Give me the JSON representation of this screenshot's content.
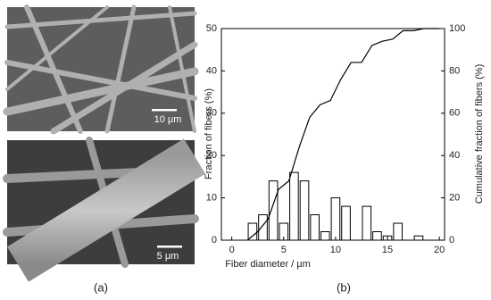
{
  "images": [
    {
      "scale_label": "10 μm"
    },
    {
      "scale_label": "5 μm"
    }
  ],
  "panel_labels": [
    "(a)",
    "(b)"
  ],
  "chart_data": {
    "type": "histogram",
    "xlabel": "Fiber diameter / µm",
    "ylabel": "Fraction of fibers (%)",
    "y2label": "Cumulative fraction of fibers (%)",
    "bins": [
      1.5,
      2.5,
      3.5,
      4.5,
      5.5,
      6.5,
      7.5,
      8.5,
      9.5,
      10.5,
      11.5,
      12.5,
      13.5,
      14.5,
      15.5,
      16.5,
      17.5,
      18.5
    ],
    "values": [
      4,
      6,
      14,
      4,
      16,
      14,
      6,
      2,
      10,
      8,
      0,
      8,
      2,
      1,
      4,
      0,
      1
    ],
    "color": "#ffffff",
    "cumulative": {
      "type": "line",
      "axis": "y2",
      "color": "#000000",
      "x": [
        1.5,
        2.5,
        3.5,
        4.5,
        5.5,
        6.5,
        7.5,
        8.5,
        9.5,
        10.5,
        11.5,
        12.5,
        13.5,
        14.5,
        15.5,
        16.5,
        17.5,
        18.5,
        20
      ],
      "values": [
        0,
        4,
        10,
        24,
        28,
        44,
        58,
        64,
        66,
        76,
        84,
        84,
        92,
        94,
        95,
        99,
        99,
        100,
        100
      ]
    },
    "xlim": [
      -1,
      20.5
    ],
    "xticks": [
      0,
      5,
      10,
      15,
      20
    ],
    "ylim": [
      0,
      50
    ],
    "yticks": [
      0,
      10,
      20,
      30,
      40,
      50
    ],
    "y2lim": [
      0,
      100
    ],
    "y2ticks": [
      0,
      20,
      40,
      60,
      80,
      100
    ]
  }
}
